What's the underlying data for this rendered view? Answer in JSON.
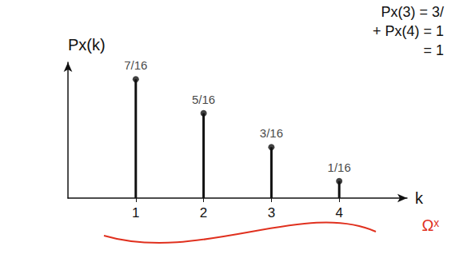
{
  "chart_data": {
    "type": "stem",
    "y_label": "Px(k)",
    "x_label": "k",
    "x": [
      1,
      2,
      3,
      4
    ],
    "values": [
      0.4375,
      0.3125,
      0.1875,
      0.0625
    ],
    "value_labels": [
      "7/16",
      "5/16",
      "3/16",
      "1/16"
    ],
    "data_labels": true,
    "xlim": [
      0,
      5
    ],
    "xticks": [
      1,
      2,
      3,
      4
    ],
    "ylim": [
      0,
      0.5
    ],
    "yticks": [],
    "tick_labels": "x",
    "grid": false,
    "color": "#111111",
    "marker": "circle",
    "annotations": [
      "Px(3) = 3/",
      "+ Px(4) = 1",
      "= 1",
      "Ωˣ"
    ]
  }
}
